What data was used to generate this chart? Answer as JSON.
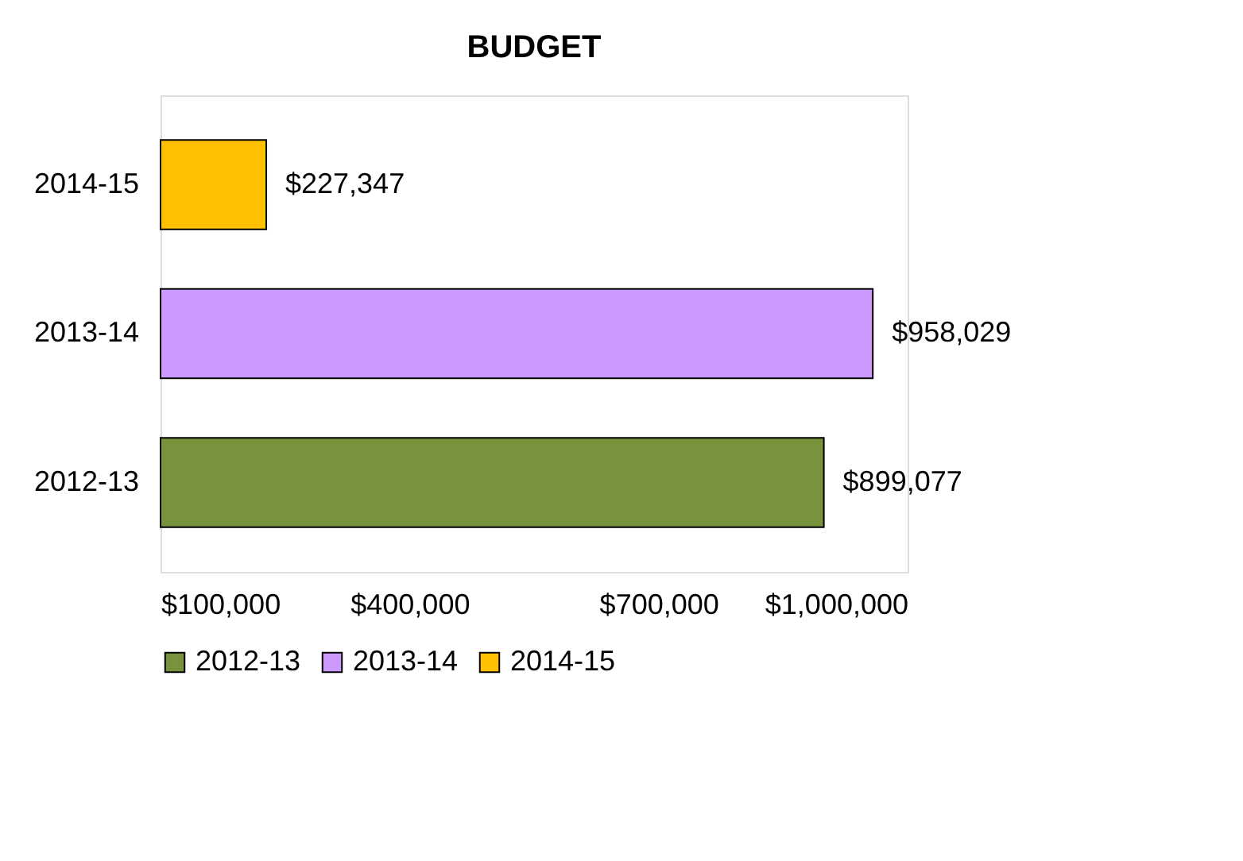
{
  "chart_data": {
    "type": "bar",
    "orientation": "horizontal",
    "title": "BUDGET",
    "categories": [
      "2014-15",
      "2013-14",
      "2012-13"
    ],
    "series": [
      {
        "name": "2012-13",
        "color": "#77933c",
        "values": [
          null,
          null,
          899077
        ],
        "value_labels": [
          null,
          null,
          "$899,077"
        ]
      },
      {
        "name": "2013-14",
        "color": "#cc99ff",
        "values": [
          null,
          958029,
          null
        ],
        "value_labels": [
          null,
          "$958,029",
          null
        ]
      },
      {
        "name": "2014-15",
        "color": "#ffc000",
        "values": [
          227347,
          null,
          null
        ],
        "value_labels": [
          "$227,347",
          null,
          null
        ]
      }
    ],
    "xlim": [
      100000,
      1000000
    ],
    "xticks": [
      {
        "value": 100000,
        "label": "$100,000"
      },
      {
        "value": 400000,
        "label": "$400,000"
      },
      {
        "value": 700000,
        "label": "$700,000"
      },
      {
        "value": 1000000,
        "label": "$1,000,000"
      }
    ],
    "grid": false,
    "legend": "bottom"
  }
}
